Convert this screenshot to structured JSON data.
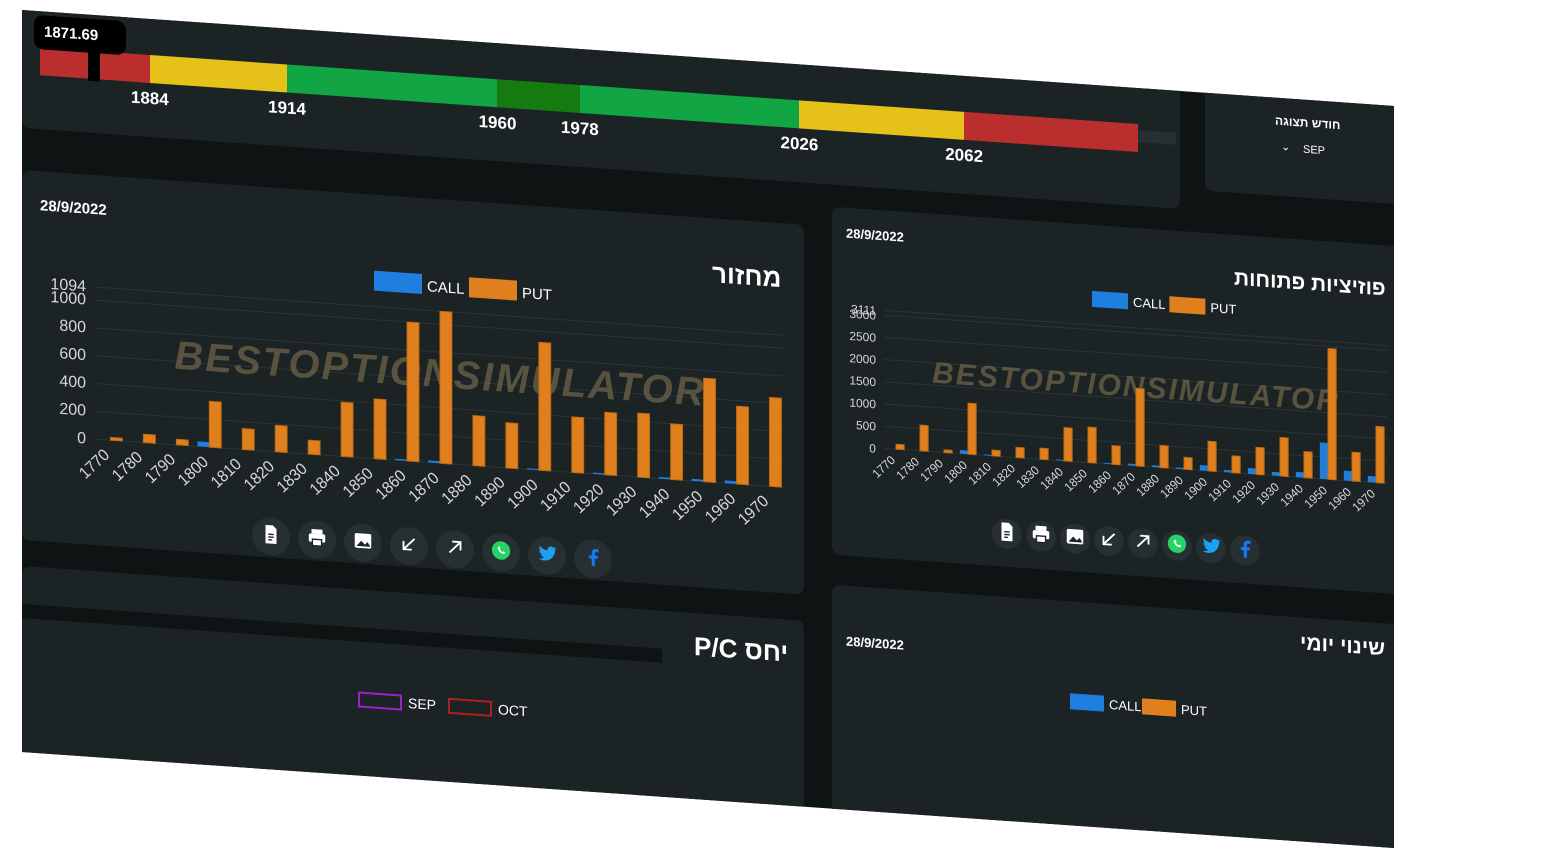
{
  "gauge": {
    "current_value": "1871.69",
    "segments": [
      {
        "to": 1884,
        "color": "#bb2e2e"
      },
      {
        "to": 1914,
        "color": "#e6c11a"
      },
      {
        "to": 1960,
        "color": "#12a543"
      },
      {
        "to": 1978,
        "color": "#157a10"
      },
      {
        "to": 2026,
        "color": "#12a543"
      },
      {
        "to": 2062,
        "color": "#e6c11a"
      },
      {
        "to": 2100,
        "color": "#bb2e2e"
      }
    ],
    "labels": [
      "1884",
      "1914",
      "1960",
      "1978",
      "2026",
      "2062"
    ]
  },
  "month_selector": {
    "label": "חודש תצוגה",
    "selected": "SEP"
  },
  "panels": {
    "volume": {
      "title": "מחזור",
      "date": "28/9/2022"
    },
    "open_positions": {
      "title": "פוזיציות פתוחות",
      "date": "28/9/2022"
    },
    "pc_ratio": {
      "title": "יחס P/C",
      "legend": [
        "SEP",
        "OCT"
      ]
    },
    "daily_change": {
      "title": "שינוי יומי",
      "date": "28/9/2022",
      "legend": [
        "CALL",
        "PUT"
      ]
    }
  },
  "watermark": "BESTOPTIONSIMULATOR",
  "colors": {
    "call": "#1e7fe0",
    "put": "#e07f1e",
    "sep": "#a020c8",
    "oct": "#b02020"
  },
  "icons": [
    "document-icon",
    "print-icon",
    "image-icon",
    "arrow-down-left-icon",
    "arrow-up-right-icon",
    "whatsapp-icon",
    "twitter-icon",
    "facebook-icon"
  ],
  "chart_data": [
    {
      "type": "bar",
      "title": "מחזור",
      "categories": [
        "1770",
        "1780",
        "1790",
        "1800",
        "1810",
        "1820",
        "1830",
        "1840",
        "1850",
        "1860",
        "1870",
        "1880",
        "1890",
        "1900",
        "1910",
        "1920",
        "1930",
        "1940",
        "1950",
        "1960",
        "1970"
      ],
      "series": [
        {
          "name": "CALL",
          "values": [
            0,
            0,
            0,
            35,
            0,
            0,
            0,
            0,
            0,
            10,
            15,
            0,
            0,
            8,
            0,
            10,
            0,
            12,
            15,
            20,
            0
          ]
        },
        {
          "name": "PUT",
          "values": [
            20,
            60,
            40,
            330,
            150,
            190,
            100,
            390,
            430,
            1000,
            1094,
            360,
            325,
            920,
            400,
            450,
            460,
            400,
            745,
            560,
            640
          ]
        }
      ],
      "y_ticks": [
        "0",
        "200",
        "400",
        "600",
        "800",
        "1000",
        "1094"
      ],
      "ylim": [
        0,
        1094
      ]
    },
    {
      "type": "bar",
      "title": "פוזיציות פתוחות",
      "categories": [
        "1770",
        "1780",
        "1790",
        "1800",
        "1810",
        "1820",
        "1830",
        "1840",
        "1850",
        "1860",
        "1870",
        "1880",
        "1890",
        "1900",
        "1910",
        "1920",
        "1930",
        "1940",
        "1950",
        "1960",
        "1970"
      ],
      "series": [
        {
          "name": "CALL",
          "values": [
            0,
            0,
            0,
            80,
            20,
            0,
            0,
            20,
            0,
            20,
            40,
            40,
            30,
            120,
            50,
            130,
            80,
            120,
            820,
            220,
            140
          ]
        },
        {
          "name": "PUT",
          "values": [
            110,
            580,
            60,
            1150,
            130,
            230,
            250,
            750,
            800,
            420,
            1750,
            500,
            270,
            670,
            380,
            610,
            870,
            590,
            2950,
            650,
            1270
          ]
        }
      ],
      "y_ticks": [
        "0",
        "500",
        "1000",
        "1500",
        "2000",
        "2500",
        "3000",
        "3111"
      ],
      "ylim": [
        0,
        3111
      ]
    }
  ]
}
